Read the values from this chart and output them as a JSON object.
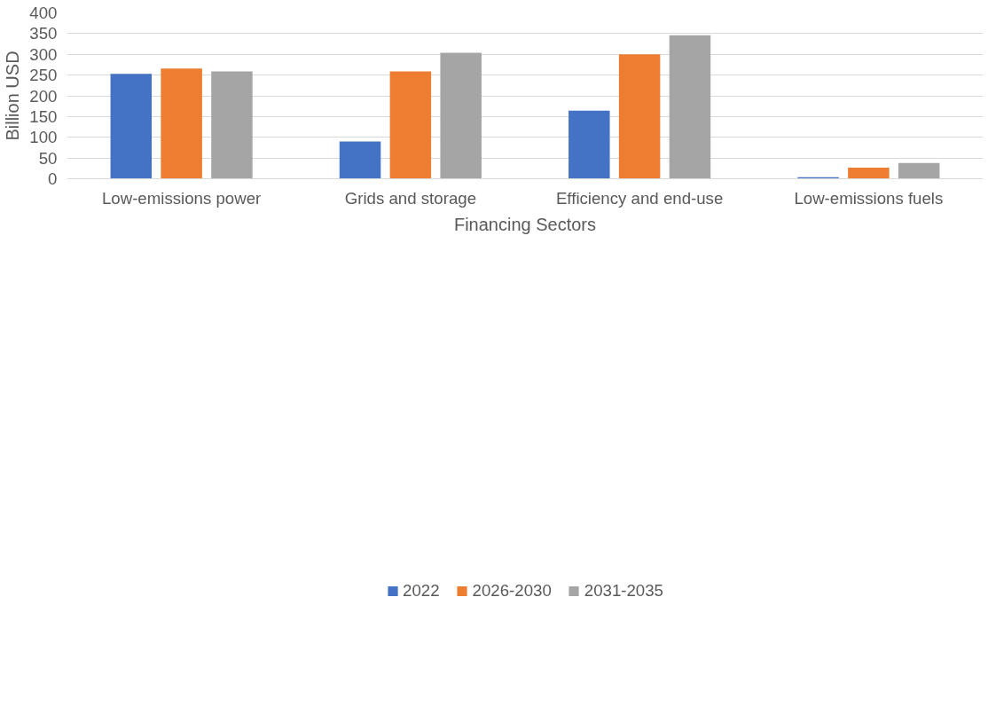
{
  "chart_data": {
    "type": "bar",
    "xlabel": "Financing Sectors",
    "ylabel": "Billion USD",
    "categories": [
      "Low-emissions power",
      "Grids and storage",
      "Efficiency and end-use",
      "Low-emissions fuels"
    ],
    "series": [
      {
        "name": "2022",
        "color": "#4472c4",
        "values": [
          253,
          90,
          164,
          4
        ]
      },
      {
        "name": "2026-2030",
        "color": "#ed7d31",
        "values": [
          266,
          259,
          300,
          27
        ]
      },
      {
        "name": "2031-2035",
        "color": "#a5a5a5",
        "values": [
          259,
          304,
          346,
          38
        ]
      }
    ],
    "ylim": [
      0,
      400
    ],
    "yticks": [
      0,
      50,
      100,
      150,
      200,
      250,
      300,
      350,
      400
    ],
    "grid": "y",
    "legend": "bottom"
  }
}
